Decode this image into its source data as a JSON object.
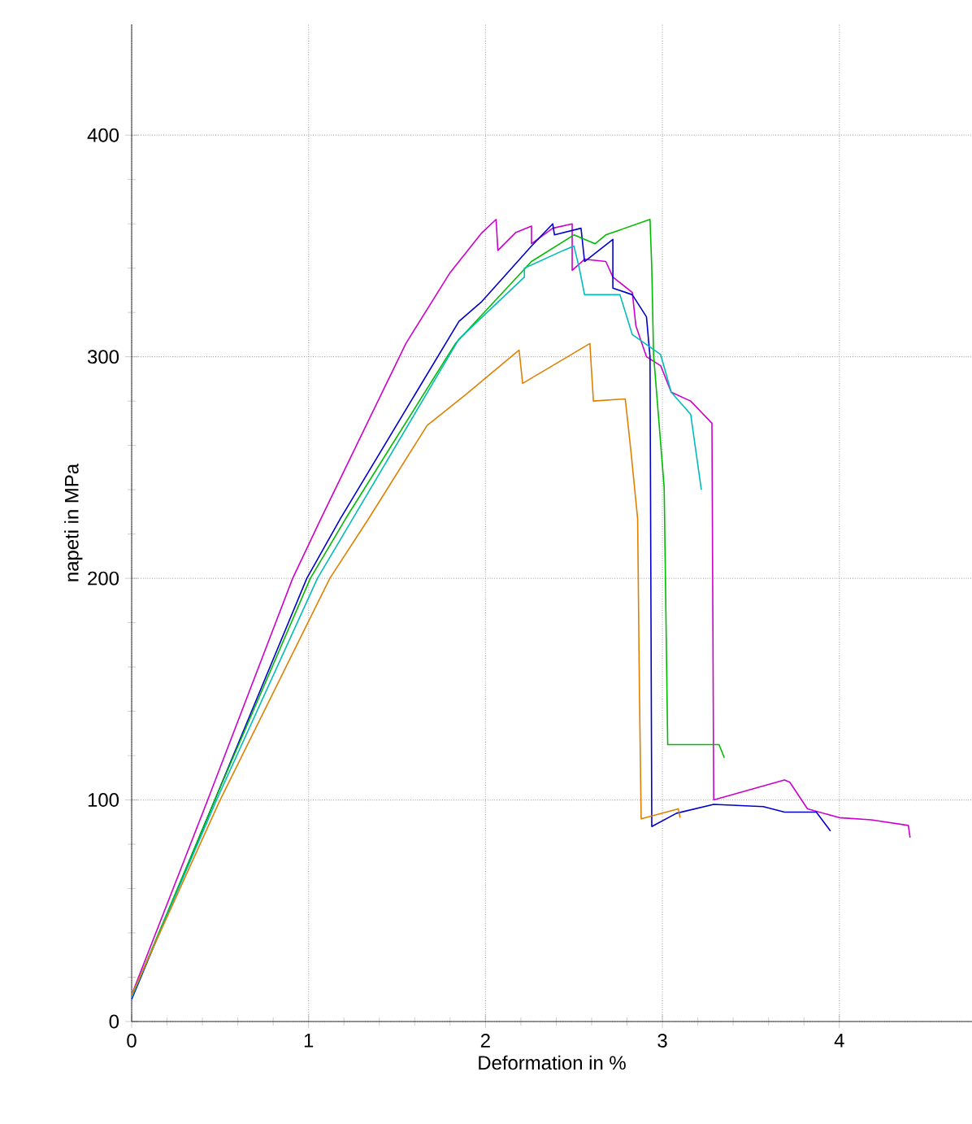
{
  "chart_data": {
    "type": "line",
    "xlabel": "Deformation in %",
    "ylabel": "napeti in MPa",
    "xlim": [
      0,
      4.75
    ],
    "ylim": [
      0,
      450
    ],
    "xticks": [
      0,
      1,
      2,
      3,
      4
    ],
    "yticks": [
      0,
      100,
      200,
      300,
      400
    ],
    "grid": true,
    "marker": "none",
    "line_style": "solid",
    "series": [
      {
        "color": "#cc00cc",
        "x": [
          0,
          0.43,
          0.91,
          1.07,
          1.55,
          1.8,
          1.98,
          2.06,
          2.07,
          2.17,
          2.26,
          2.26,
          2.38,
          2.49,
          2.49,
          2.56,
          2.68,
          2.72,
          2.83,
          2.85,
          2.91,
          2.99,
          3.05,
          3.16,
          3.28,
          3.29,
          3.69,
          3.72,
          3.82,
          4.0,
          4.18,
          4.39,
          4.4
        ],
        "values": [
          12,
          100,
          200,
          227,
          306,
          338,
          356,
          362,
          348,
          356,
          359,
          351,
          358,
          360,
          339,
          344,
          343,
          336,
          329,
          314,
          300,
          296,
          284,
          280,
          270,
          100,
          109,
          108,
          96,
          92,
          91,
          88.5,
          83
        ]
      },
      {
        "color": "#0000cc",
        "x": [
          0,
          0.47,
          0.99,
          1.18,
          1.85,
          1.98,
          2.26,
          2.38,
          2.39,
          2.54,
          2.56,
          2.72,
          2.72,
          2.83,
          2.91,
          2.93,
          2.94,
          3.08,
          3.29,
          3.57,
          3.69,
          3.87,
          3.95
        ],
        "values": [
          10,
          100,
          200,
          227,
          316,
          325,
          350,
          360,
          355,
          358,
          343,
          353,
          331,
          328,
          318,
          300,
          88,
          94,
          98,
          97,
          94.5,
          94.5,
          86
        ]
      },
      {
        "color": "#00bb00",
        "x": [
          0,
          0.47,
          1.01,
          1.21,
          1.83,
          2.26,
          2.5,
          2.62,
          2.68,
          2.93,
          2.94,
          2.95,
          3.01,
          3.03,
          3.32,
          3.35
        ],
        "values": [
          11,
          100,
          200,
          227,
          306,
          343,
          355,
          351,
          355,
          362,
          340,
          301,
          241,
          125,
          125,
          119
        ]
      },
      {
        "color": "#00bbbb",
        "x": [
          0,
          0.48,
          1.05,
          1.25,
          1.85,
          2.22,
          2.22,
          2.44,
          2.5,
          2.53,
          2.56,
          2.76,
          2.83,
          2.99,
          3.05,
          3.16,
          3.22
        ],
        "values": [
          11,
          100,
          200,
          227,
          308,
          336,
          340,
          348,
          350,
          340,
          328,
          328,
          310,
          301,
          284,
          274,
          240
        ]
      },
      {
        "color": "#e08000",
        "x": [
          0,
          0.5,
          1.12,
          1.34,
          1.67,
          1.89,
          2.19,
          2.21,
          2.59,
          2.61,
          2.79,
          2.82,
          2.86,
          2.87,
          2.88,
          3.09,
          3.1
        ],
        "values": [
          12,
          100,
          200,
          227,
          269,
          283,
          303,
          288,
          306,
          280,
          281,
          259,
          227,
          150,
          91.5,
          96,
          92
        ]
      }
    ]
  }
}
